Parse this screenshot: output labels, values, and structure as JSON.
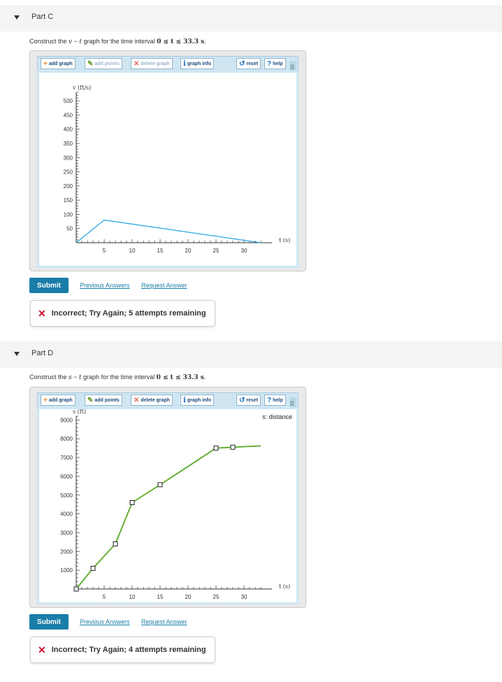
{
  "partC": {
    "header": "Part C",
    "prompt_prefix": "Construct the ",
    "prompt_var1": "v",
    "prompt_dash": " − ",
    "prompt_var2": "t",
    "prompt_mid": " graph for the time interval ",
    "prompt_math": "0 ≤ t ≤ 33.3 s",
    "prompt_end": ".",
    "toolbar": {
      "add_graph": "add graph",
      "add_points": "add points",
      "delete_graph": "delete graph",
      "graph_info": "graph info",
      "reset": "reset",
      "help": "help",
      "side_tab": "1.53"
    },
    "submit": "Submit",
    "previous_answers": "Previous Answers",
    "request_answer": "Request Answer",
    "feedback": "Incorrect; Try Again; 5 attempts remaining"
  },
  "partD": {
    "header": "Part D",
    "prompt_prefix": "Construct the ",
    "prompt_var1": "s",
    "prompt_dash": " − ",
    "prompt_var2": "t",
    "prompt_mid": " graph for the time interval ",
    "prompt_math": "0 ≤ t ≤ 33.3 s",
    "prompt_end": ".",
    "toolbar": {
      "add_graph": "add graph",
      "add_points": "add points",
      "delete_graph": "delete graph",
      "graph_info": "graph info",
      "reset": "reset",
      "help": "help",
      "side_tab": "1.53"
    },
    "submit": "Submit",
    "previous_answers": "Previous Answers",
    "request_answer": "Request Answer",
    "feedback": "Incorrect; Try Again; 4 attempts remaining"
  },
  "chart_data": [
    {
      "type": "line",
      "ylabel": "v (ft/s)",
      "xlabel": "t (s)",
      "xlim": [
        0,
        33.3
      ],
      "ylim": [
        0,
        530
      ],
      "xticks": [
        5,
        10,
        15,
        20,
        25,
        30
      ],
      "yticks": [
        50,
        100,
        150,
        200,
        250,
        300,
        350,
        400,
        450,
        500
      ],
      "series": [
        {
          "color": "#2aa8e0",
          "x": [
            0,
            5,
            33
          ],
          "y": [
            0,
            80,
            0
          ]
        }
      ]
    },
    {
      "type": "line",
      "ylabel": "s (ft)",
      "xlabel": "t (s)",
      "legend": "s: distance",
      "xlim": [
        0,
        33.3
      ],
      "ylim": [
        0,
        9200
      ],
      "xticks": [
        5,
        10,
        15,
        20,
        25,
        30
      ],
      "yticks": [
        1000,
        2000,
        3000,
        4000,
        5000,
        6000,
        7000,
        8000,
        9000
      ],
      "series": [
        {
          "color": "#4caf50",
          "x": [
            0,
            3,
            7,
            10,
            15,
            25,
            28,
            33
          ],
          "y": [
            0,
            1100,
            2400,
            4600,
            5550,
            7500,
            7550,
            7620
          ],
          "markers": [
            true,
            true,
            true,
            true,
            true,
            true,
            true,
            false
          ]
        }
      ]
    }
  ]
}
